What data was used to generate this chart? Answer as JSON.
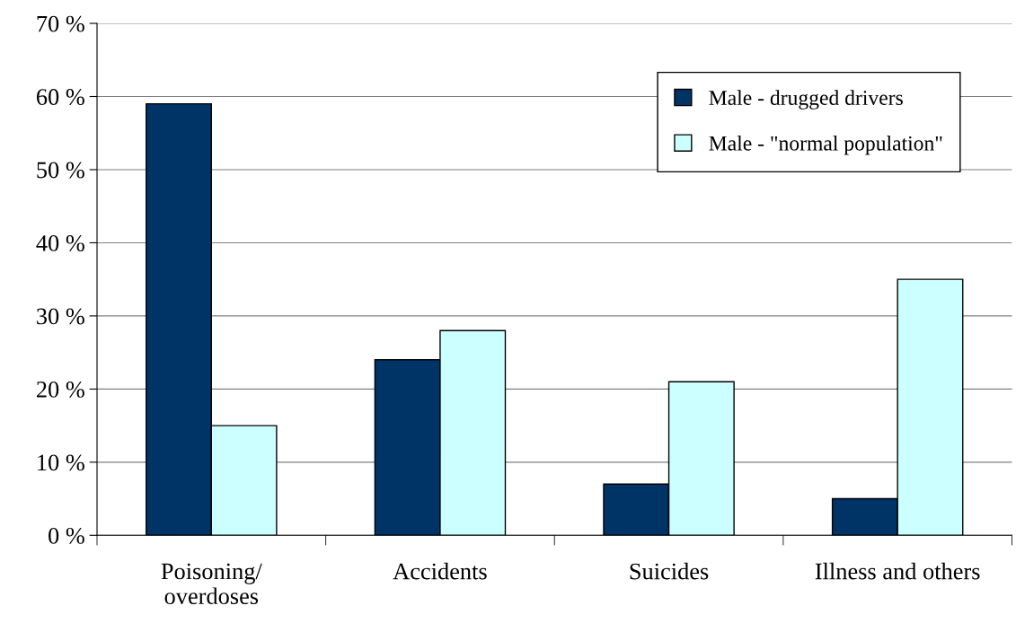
{
  "chart_data": {
    "type": "bar",
    "categories": [
      "Poisoning/\noverdoses",
      "Accidents",
      "Suicides",
      "Illness and others"
    ],
    "series": [
      {
        "name": "Male - drugged drivers",
        "color": "#003366",
        "values": [
          59,
          24,
          7,
          5
        ]
      },
      {
        "name": "Male - \"normal population\"",
        "color": "#ccffff",
        "values": [
          15,
          28,
          21,
          35
        ]
      }
    ],
    "ylim": [
      0,
      70
    ],
    "yticks": [
      {
        "value": 0,
        "label": "0 %"
      },
      {
        "value": 10,
        "label": "10 %"
      },
      {
        "value": 20,
        "label": "20 %"
      },
      {
        "value": 30,
        "label": "30 %"
      },
      {
        "value": 40,
        "label": "40 %"
      },
      {
        "value": 50,
        "label": "50 %"
      },
      {
        "value": 60,
        "label": "60 %"
      },
      {
        "value": 70,
        "label": "70 %"
      }
    ],
    "grid": "y",
    "legend": "top right"
  }
}
